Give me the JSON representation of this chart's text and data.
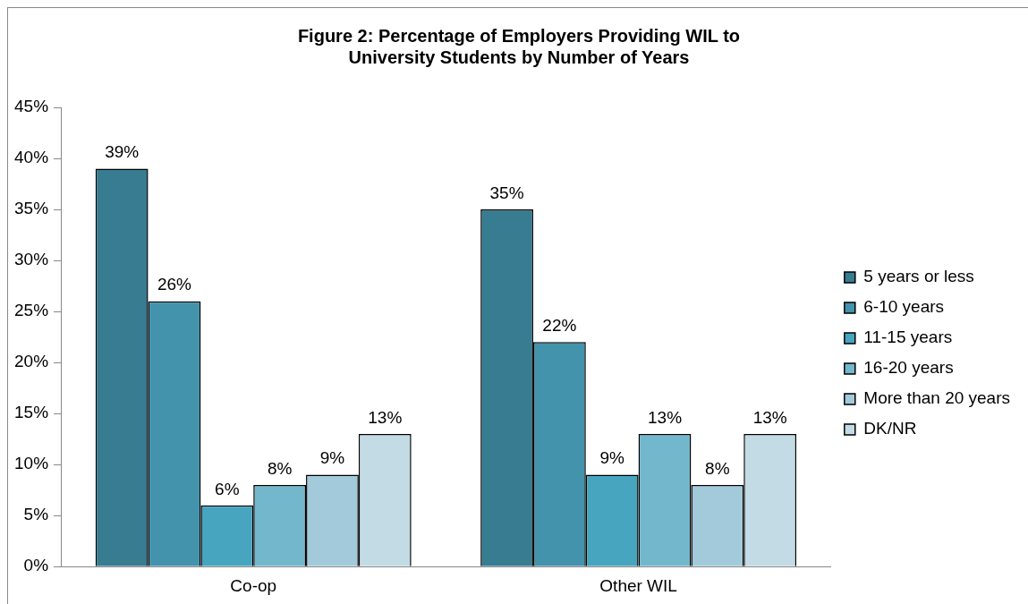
{
  "chart_data": {
    "type": "bar",
    "title": "Figure 2: Percentage of Employers Providing WIL to University Students by Number of Years",
    "categories": [
      "Co-op",
      "Other WIL"
    ],
    "series": [
      {
        "name": "5 years or less",
        "color": "#377c91",
        "values": [
          39,
          35
        ],
        "value_labels": [
          "39%",
          "35%"
        ]
      },
      {
        "name": "6-10 years",
        "color": "#4293ab",
        "values": [
          26,
          22
        ],
        "value_labels": [
          "26%",
          "22%"
        ]
      },
      {
        "name": "11-15 years",
        "color": "#47a5bf",
        "values": [
          6,
          9
        ],
        "value_labels": [
          "6%",
          "9%"
        ]
      },
      {
        "name": "16-20 years",
        "color": "#73b7cc",
        "values": [
          8,
          13
        ],
        "value_labels": [
          "8%",
          "13%"
        ]
      },
      {
        "name": "More than 20 years",
        "color": "#a2cadb",
        "values": [
          9,
          8
        ],
        "value_labels": [
          "9%",
          "8%"
        ]
      },
      {
        "name": "DK/NR",
        "color": "#c3dbe4",
        "values": [
          13,
          13
        ],
        "value_labels": [
          "13%",
          "13%"
        ]
      }
    ],
    "ylim": [
      0,
      45
    ],
    "yticks": [
      {
        "value": 0,
        "label": "0%"
      },
      {
        "value": 5,
        "label": "5%"
      },
      {
        "value": 10,
        "label": "10%"
      },
      {
        "value": 15,
        "label": "15%"
      },
      {
        "value": 20,
        "label": "20%"
      },
      {
        "value": 25,
        "label": "25%"
      },
      {
        "value": 30,
        "label": "30%"
      },
      {
        "value": 35,
        "label": "35%"
      },
      {
        "value": 40,
        "label": "40%"
      },
      {
        "value": 45,
        "label": "45%"
      }
    ],
    "grid": false,
    "legend": "right"
  }
}
